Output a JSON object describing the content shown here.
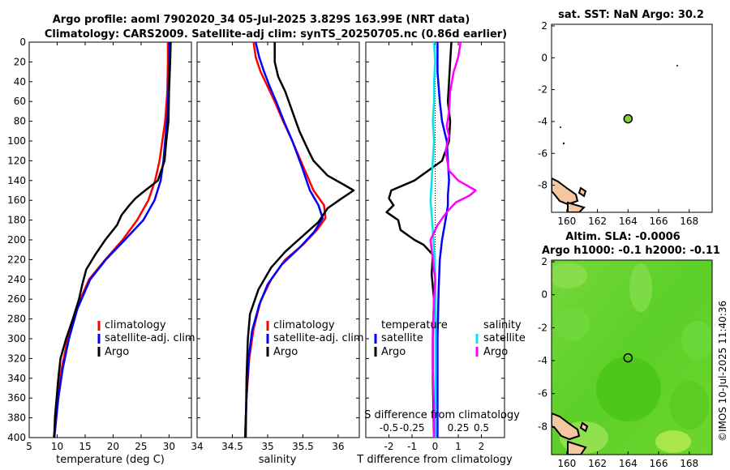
{
  "header": {
    "line1": "Argo profile: aoml 7902020_34 05-Jul-2025 3.829S 163.99E (NRT data)",
    "line2": "Climatology: CARS2009. Satellite-adj clim: synTS_20250705.nc (0.86d earlier)"
  },
  "side_label": "©IMOS 10-Jul-2025 11:40:36",
  "colors": {
    "climatology": "#ff0000",
    "satellite": "#0000ff",
    "argo": "#000000",
    "sat_cyan": "#00e5ee",
    "argo_magenta": "#ff00ff",
    "land": "#f5c7a0",
    "sst_dot": "#7fd13b",
    "sla_green": "#5ed31f"
  },
  "chart_data": [
    {
      "type": "line",
      "name": "temperature",
      "xlabel": "temperature (deg C)",
      "xlim": [
        5,
        34
      ],
      "xticks": [
        5,
        10,
        15,
        20,
        25,
        30
      ],
      "ylim": [
        0,
        400
      ],
      "yticks": [
        0,
        20,
        40,
        60,
        80,
        100,
        120,
        140,
        160,
        180,
        200,
        220,
        240,
        260,
        280,
        300,
        320,
        340,
        360,
        380,
        400
      ],
      "legend": [
        "climatology",
        "satellite-adj. clim",
        "Argo"
      ],
      "series": [
        {
          "name": "climatology",
          "color": "#ff0000",
          "points": [
            [
              29.8,
              0
            ],
            [
              29.8,
              20
            ],
            [
              29.7,
              50
            ],
            [
              29.3,
              80
            ],
            [
              28.8,
              100
            ],
            [
              28.3,
              120
            ],
            [
              27.5,
              140
            ],
            [
              26.3,
              160
            ],
            [
              24.3,
              180
            ],
            [
              21.7,
              200
            ],
            [
              18.6,
              220
            ],
            [
              15.7,
              240
            ],
            [
              13.4,
              270
            ],
            [
              11.9,
              300
            ],
            [
              10.8,
              330
            ],
            [
              10,
              360
            ],
            [
              9.4,
              400
            ]
          ]
        },
        {
          "name": "satellite-adj. clim",
          "color": "#0000ff",
          "points": [
            [
              30,
              0
            ],
            [
              30,
              20
            ],
            [
              29.9,
              50
            ],
            [
              29.6,
              80
            ],
            [
              29.3,
              100
            ],
            [
              29,
              120
            ],
            [
              28.5,
              140
            ],
            [
              27.4,
              160
            ],
            [
              25.4,
              180
            ],
            [
              22.1,
              200
            ],
            [
              18.7,
              220
            ],
            [
              15.9,
              240
            ],
            [
              13.6,
              270
            ],
            [
              12.1,
              300
            ],
            [
              11,
              330
            ],
            [
              10.2,
              360
            ],
            [
              9.5,
              400
            ]
          ]
        },
        {
          "name": "Argo",
          "color": "#000000",
          "points": [
            [
              30.3,
              0
            ],
            [
              30.2,
              20
            ],
            [
              30,
              50
            ],
            [
              29.9,
              80
            ],
            [
              29.5,
              100
            ],
            [
              29.2,
              120
            ],
            [
              28,
              140
            ],
            [
              25.3,
              152
            ],
            [
              24,
              158
            ],
            [
              22.9,
              165
            ],
            [
              21.5,
              175
            ],
            [
              20.7,
              185
            ],
            [
              18.6,
              200
            ],
            [
              16.8,
              215
            ],
            [
              15.2,
              230
            ],
            [
              14.5,
              245
            ],
            [
              13.9,
              260
            ],
            [
              12.8,
              280
            ],
            [
              11.6,
              300
            ],
            [
              10.6,
              320
            ],
            [
              10.2,
              340
            ],
            [
              9.9,
              360
            ],
            [
              9.6,
              380
            ],
            [
              9.5,
              400
            ]
          ]
        }
      ]
    },
    {
      "type": "line",
      "name": "salinity",
      "xlabel": "salinity",
      "xlim": [
        34,
        36.3
      ],
      "xticks": [
        34,
        34.5,
        35,
        35.5,
        36
      ],
      "ylim": [
        0,
        400
      ],
      "legend": [
        "climatology",
        "satellite-adj. clim",
        "Argo"
      ],
      "series": [
        {
          "name": "climatology",
          "color": "#ff0000",
          "points": [
            [
              34.8,
              0
            ],
            [
              34.83,
              15
            ],
            [
              34.9,
              30
            ],
            [
              35,
              45
            ],
            [
              35.1,
              60
            ],
            [
              35.22,
              80
            ],
            [
              35.35,
              100
            ],
            [
              35.5,
              125
            ],
            [
              35.65,
              150
            ],
            [
              35.8,
              165
            ],
            [
              35.82,
              178
            ],
            [
              35.7,
              190
            ],
            [
              35.5,
              205
            ],
            [
              35.25,
              220
            ],
            [
              35.05,
              240
            ],
            [
              34.9,
              262
            ],
            [
              34.8,
              290
            ],
            [
              34.74,
              320
            ],
            [
              34.7,
              360
            ],
            [
              34.68,
              400
            ]
          ]
        },
        {
          "name": "satellite-adj. clim",
          "color": "#0000ff",
          "points": [
            [
              34.83,
              0
            ],
            [
              34.88,
              15
            ],
            [
              34.95,
              30
            ],
            [
              35.03,
              45
            ],
            [
              35.12,
              60
            ],
            [
              35.23,
              80
            ],
            [
              35.35,
              100
            ],
            [
              35.48,
              125
            ],
            [
              35.6,
              150
            ],
            [
              35.72,
              165
            ],
            [
              35.78,
              178
            ],
            [
              35.66,
              192
            ],
            [
              35.45,
              208
            ],
            [
              35.2,
              225
            ],
            [
              35,
              245
            ],
            [
              34.88,
              266
            ],
            [
              34.78,
              292
            ],
            [
              34.73,
              320
            ],
            [
              34.7,
              360
            ],
            [
              34.68,
              400
            ]
          ]
        },
        {
          "name": "Argo",
          "color": "#000000",
          "points": [
            [
              35.1,
              0
            ],
            [
              35.1,
              20
            ],
            [
              35.15,
              35
            ],
            [
              35.25,
              50
            ],
            [
              35.35,
              70
            ],
            [
              35.45,
              90
            ],
            [
              35.58,
              110
            ],
            [
              35.65,
              120
            ],
            [
              35.85,
              135
            ],
            [
              36.1,
              145
            ],
            [
              36.22,
              150
            ],
            [
              36.05,
              158
            ],
            [
              35.85,
              168
            ],
            [
              35.72,
              182
            ],
            [
              35.5,
              196
            ],
            [
              35.25,
              212
            ],
            [
              35.05,
              228
            ],
            [
              34.87,
              250
            ],
            [
              34.75,
              275
            ],
            [
              34.72,
              300
            ],
            [
              34.7,
              340
            ],
            [
              34.69,
              400
            ]
          ]
        }
      ]
    },
    {
      "type": "line",
      "name": "differences",
      "xlabel": "T difference from climatology",
      "xlim": [
        -3,
        3
      ],
      "xticks": [
        -2,
        -1,
        0,
        1,
        2
      ],
      "top_label": "S difference from climatology",
      "top_ticks": [
        "-0.5",
        "-0.25",
        "0",
        "0.25",
        "0.5"
      ],
      "top_tick_values": [
        -0.5,
        -0.25,
        0,
        0.25,
        0.5
      ],
      "s_scale": 4,
      "ylim": [
        0,
        400
      ],
      "legend_left_title": "temperature",
      "legend_right_title": "salinity",
      "legend": [
        "satellite",
        "Argo",
        "satellite",
        "Argo"
      ],
      "series": [
        {
          "name": "T satellite",
          "color": "#0000ff",
          "points": [
            [
              0.1,
              0
            ],
            [
              0.1,
              30
            ],
            [
              0.2,
              60
            ],
            [
              0.3,
              80
            ],
            [
              0.5,
              100
            ],
            [
              0.55,
              120
            ],
            [
              0.6,
              140
            ],
            [
              0.55,
              155
            ],
            [
              0.55,
              165
            ],
            [
              0.45,
              180
            ],
            [
              0.3,
              200
            ],
            [
              0.2,
              220
            ],
            [
              0.15,
              250
            ],
            [
              0.1,
              300
            ],
            [
              0.1,
              400
            ]
          ]
        },
        {
          "name": "T Argo",
          "color": "#000000",
          "points": [
            [
              0.7,
              0
            ],
            [
              0.65,
              20
            ],
            [
              0.6,
              40
            ],
            [
              0.55,
              60
            ],
            [
              0.65,
              80
            ],
            [
              0.6,
              100
            ],
            [
              0.3,
              120
            ],
            [
              -0.9,
              140
            ],
            [
              -1.9,
              150
            ],
            [
              -2,
              158
            ],
            [
              -1.8,
              165
            ],
            [
              -2.1,
              172
            ],
            [
              -1.6,
              180
            ],
            [
              -1.5,
              190
            ],
            [
              -0.9,
              200
            ],
            [
              -0.5,
              205
            ],
            [
              -0.1,
              215
            ],
            [
              -0.15,
              235
            ],
            [
              -0.05,
              260
            ],
            [
              -0.1,
              300
            ],
            [
              -0.1,
              340
            ],
            [
              -0.05,
              400
            ]
          ]
        },
        {
          "name": "S satellite",
          "color": "#00e5ee",
          "points": [
            [
              -0.05,
              0
            ],
            [
              0,
              20
            ],
            [
              -0.05,
              40
            ],
            [
              -0.05,
              60
            ],
            [
              -0.1,
              80
            ],
            [
              -0.05,
              100
            ],
            [
              -0.1,
              120
            ],
            [
              -0.15,
              140
            ],
            [
              -0.2,
              160
            ],
            [
              -0.15,
              175
            ],
            [
              -0.1,
              190
            ],
            [
              -0.05,
              210
            ],
            [
              0,
              230
            ],
            [
              0.02,
              260
            ],
            [
              0.02,
              300
            ],
            [
              0.02,
              400
            ]
          ]
        },
        {
          "name": "S Argo",
          "color": "#ff00ff",
          "points": [
            [
              1.1,
              0
            ],
            [
              1,
              15
            ],
            [
              0.8,
              30
            ],
            [
              0.65,
              50
            ],
            [
              0.6,
              70
            ],
            [
              0.5,
              85
            ],
            [
              0.6,
              95
            ],
            [
              0.45,
              110
            ],
            [
              0.6,
              130
            ],
            [
              1,
              140
            ],
            [
              1.75,
              150
            ],
            [
              1.5,
              155
            ],
            [
              0.9,
              162
            ],
            [
              0.5,
              172
            ],
            [
              0.1,
              185
            ],
            [
              -0.2,
              200
            ],
            [
              -0.1,
              220
            ],
            [
              0,
              240
            ],
            [
              -0.05,
              260
            ],
            [
              -0.1,
              290
            ],
            [
              -0.1,
              330
            ],
            [
              -0.05,
              370
            ],
            [
              -0.05,
              400
            ]
          ]
        }
      ]
    },
    {
      "type": "map",
      "name": "sst",
      "title": "sat. SST: NaN Argo: 30.2",
      "xlim": [
        159,
        169.5
      ],
      "ylim": [
        -9.7,
        2.1
      ],
      "xticks": [
        160,
        162,
        164,
        166,
        168
      ],
      "yticks": [
        2,
        0,
        -2,
        -4,
        -6,
        -8
      ],
      "float_position": [
        164,
        -3.83
      ]
    },
    {
      "type": "map",
      "name": "sla",
      "title1": "Altim. SLA: -0.0006",
      "title2": "Argo h1000: -0.1 h2000: -0.11",
      "xlim": [
        159,
        169.5
      ],
      "ylim": [
        -9.7,
        2.1
      ],
      "xticks": [
        160,
        162,
        164,
        166,
        168
      ],
      "yticks": [
        2,
        0,
        -2,
        -4,
        -6,
        -8
      ],
      "float_position": [
        164,
        -3.83
      ]
    }
  ]
}
